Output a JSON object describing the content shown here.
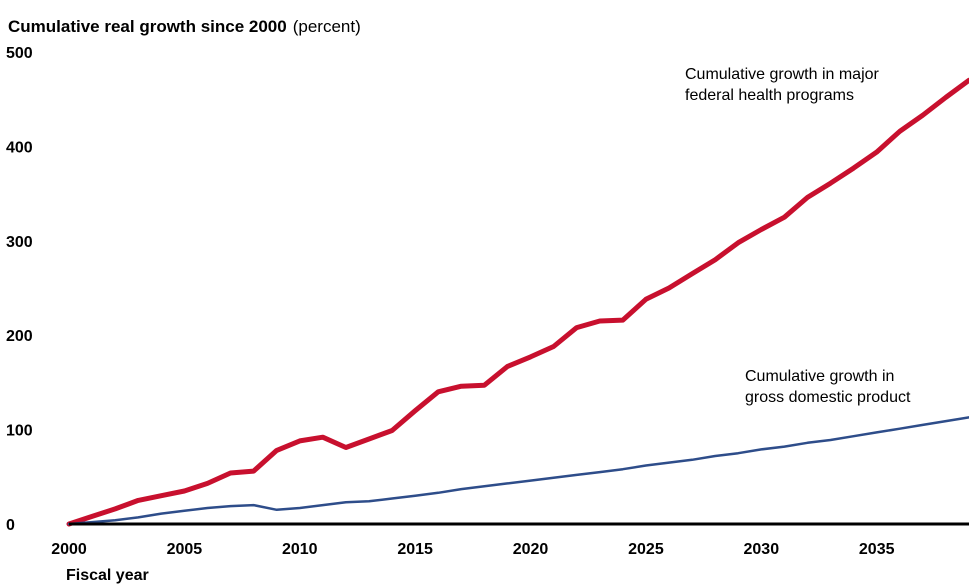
{
  "chart_data": {
    "type": "line",
    "title": "Cumulative real growth since 2000",
    "title_unit": "(percent)",
    "xlabel": "Fiscal year",
    "ylabel": "",
    "xlim": [
      2000,
      2039
    ],
    "ylim": [
      0,
      500
    ],
    "x_ticks": [
      2000,
      2005,
      2010,
      2015,
      2020,
      2025,
      2030,
      2035
    ],
    "y_ticks": [
      0,
      100,
      200,
      300,
      400,
      500
    ],
    "grid": false,
    "legend": "none",
    "x": [
      2000,
      2001,
      2002,
      2003,
      2004,
      2005,
      2006,
      2007,
      2008,
      2009,
      2010,
      2011,
      2012,
      2013,
      2014,
      2015,
      2016,
      2017,
      2018,
      2019,
      2020,
      2021,
      2022,
      2023,
      2024,
      2025,
      2026,
      2027,
      2028,
      2029,
      2030,
      2031,
      2032,
      2033,
      2034,
      2035,
      2036,
      2037,
      2038,
      2039
    ],
    "series": [
      {
        "key": "health",
        "color": "#c8102e",
        "values": [
          0,
          8,
          16,
          25,
          30,
          35,
          43,
          54,
          56,
          78,
          88,
          92,
          81,
          90,
          99,
          120,
          140,
          146,
          147,
          167,
          177,
          188,
          208,
          215,
          216,
          238,
          250,
          265,
          280,
          298,
          312,
          325,
          346,
          361,
          377,
          394,
          416,
          433,
          452,
          470
        ],
        "annotation": [
          "Cumulative growth in major",
          "federal health programs"
        ]
      },
      {
        "key": "gdp",
        "color": "#2e4d8a",
        "values": [
          0,
          2,
          4,
          7,
          11,
          14,
          17,
          19,
          20,
          15,
          17,
          20,
          23,
          24,
          27,
          30,
          33,
          37,
          40,
          43,
          46,
          49,
          52,
          55,
          58,
          62,
          65,
          68,
          72,
          75,
          79,
          82,
          86,
          89,
          93,
          97,
          101,
          105,
          109,
          113
        ],
        "annotation": [
          "Cumulative growth in",
          "gross domestic product"
        ]
      }
    ]
  }
}
